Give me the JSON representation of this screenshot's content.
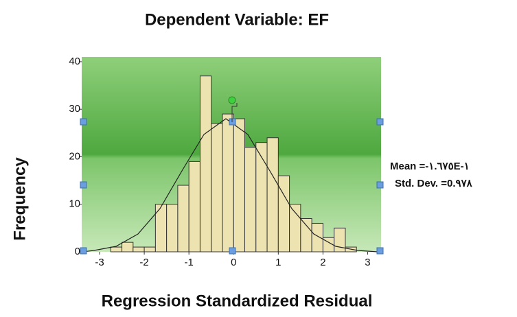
{
  "chart_data": {
    "type": "histogram",
    "title": "Dependent Variable: EF",
    "xlabel": "Regression Standardized Residual",
    "ylabel": "Frequency",
    "bins": [
      -2.75,
      -2.5,
      -2.25,
      -2.0,
      -1.75,
      -1.5,
      -1.25,
      -1.0,
      -0.75,
      -0.5,
      -0.25,
      0.0,
      0.25,
      0.5,
      0.75,
      1.0,
      1.25,
      1.5,
      1.75,
      2.0,
      2.25,
      2.5,
      2.75
    ],
    "values": [
      1,
      2,
      1,
      1,
      10,
      10,
      14,
      19,
      37,
      27,
      29,
      28,
      22,
      23,
      24,
      16,
      10,
      7,
      6,
      3,
      5,
      1
    ],
    "color": "#ece3b0",
    "xlim": [
      -3.4,
      3.3
    ],
    "xticks": [
      -3,
      -2,
      -1,
      0,
      1,
      2,
      3
    ],
    "ylim": [
      0,
      41
    ],
    "yticks": [
      0,
      10,
      20,
      30,
      40
    ],
    "annotations": [
      "Mean =-۱.٦٧٥E-۱",
      "Std. Dev. =0.۹۷۸"
    ]
  }
}
